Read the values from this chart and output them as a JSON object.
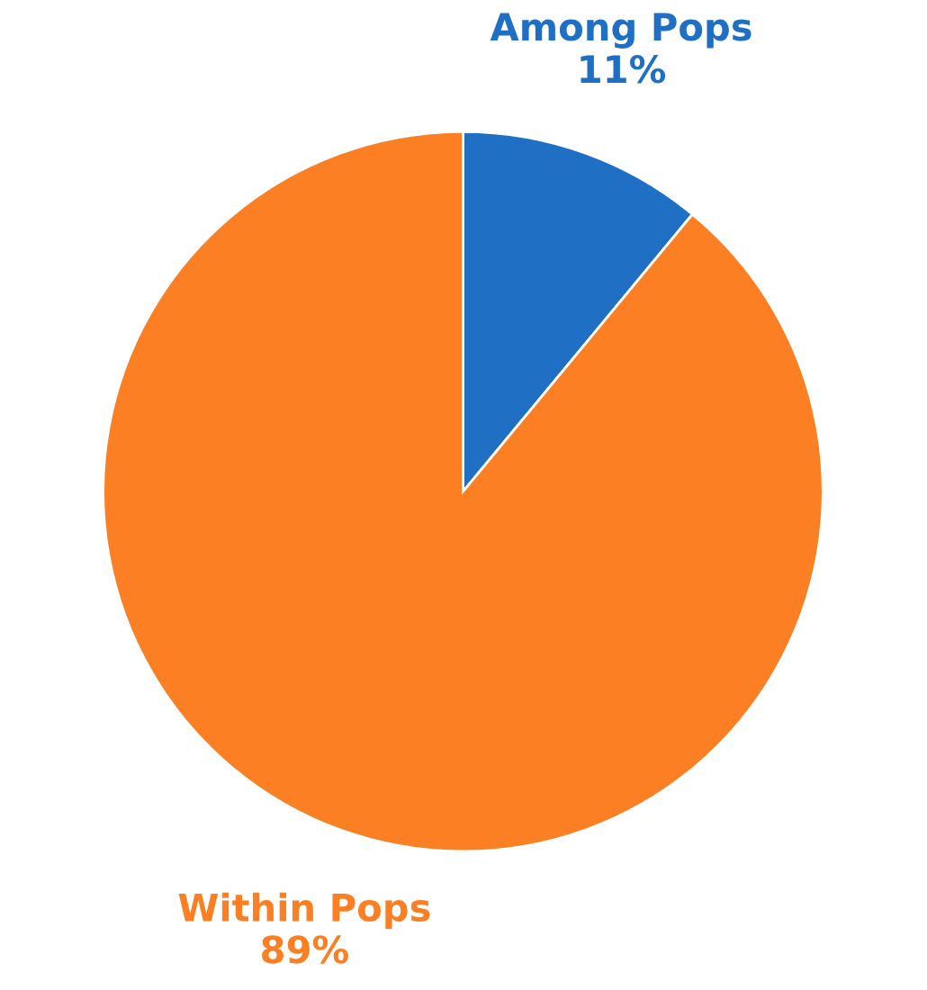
{
  "chart_data": {
    "type": "pie",
    "categories": [
      "Among Pops",
      "Within Pops"
    ],
    "values": [
      11,
      89
    ],
    "colors": [
      "#1f6fc4",
      "#fd7f23"
    ],
    "value_labels": [
      "11%",
      "89%"
    ]
  }
}
